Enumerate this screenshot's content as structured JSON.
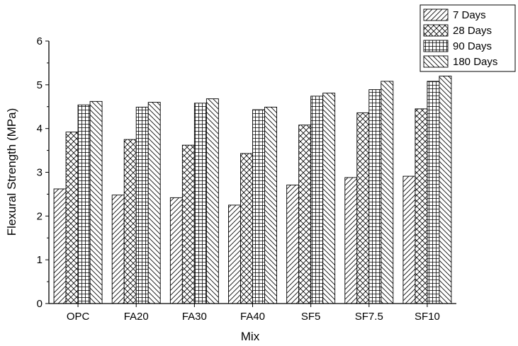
{
  "chart_data": {
    "type": "bar",
    "xlabel": "Mix",
    "ylabel": "Flexural Strength (MPa)",
    "ylim": [
      0,
      6
    ],
    "yticks": [
      0,
      1,
      2,
      3,
      4,
      5,
      6
    ],
    "grid": false,
    "legend_position": "top-right",
    "categories": [
      "OPC",
      "FA20",
      "FA30",
      "FA40",
      "SF5",
      "SF7.5",
      "SF10"
    ],
    "series": [
      {
        "name": "7 Days",
        "pattern": "diag-forward",
        "values": [
          2.62,
          2.48,
          2.42,
          2.25,
          2.71,
          2.88,
          2.91
        ]
      },
      {
        "name": "28 Days",
        "pattern": "crosshatch",
        "values": [
          3.92,
          3.75,
          3.62,
          3.43,
          4.08,
          4.36,
          4.45
        ]
      },
      {
        "name": "90 Days",
        "pattern": "grid",
        "values": [
          4.54,
          4.49,
          4.58,
          4.43,
          4.74,
          4.89,
          5.08
        ]
      },
      {
        "name": "180 Days",
        "pattern": "diag-backward",
        "values": [
          4.62,
          4.6,
          4.68,
          4.49,
          4.81,
          5.08,
          5.2
        ]
      }
    ],
    "colors": {
      "bar_stroke": "#000000",
      "fill": "#ffffff",
      "axis": "#000000"
    }
  }
}
